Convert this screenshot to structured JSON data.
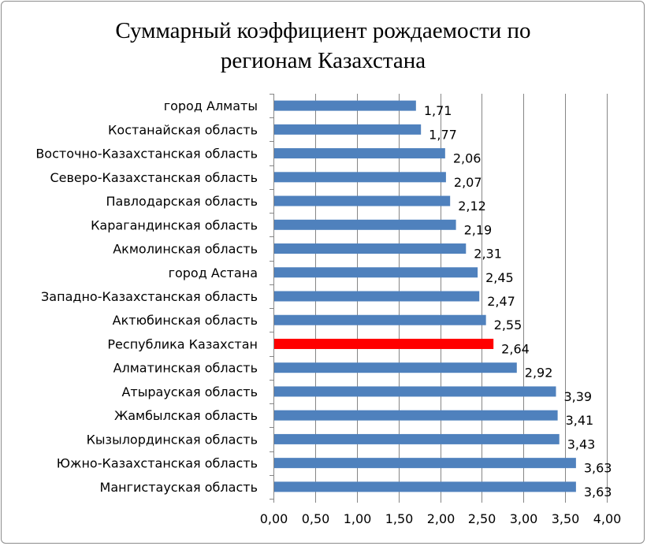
{
  "chart_data": {
    "type": "bar",
    "orientation": "horizontal",
    "title": "Суммарный коэффициент рождаемости по\nрегионам Казахстана",
    "xlabel": "",
    "ylabel": "",
    "xlim": [
      0,
      4
    ],
    "x_ticks": [
      "0,00",
      "0,50",
      "1,00",
      "1,50",
      "2,00",
      "2,50",
      "3,00",
      "3,50",
      "4,00"
    ],
    "grid": "vertical",
    "legend": "none",
    "colors": {
      "default_bar": "#4f81bd",
      "highlight_bar": "#ff0000",
      "grid": "#868686"
    },
    "categories": [
      "город Алматы",
      "Костанайская область",
      "Восточно-Казахстанская область",
      "Северо-Казахстанская область",
      "Павлодарская область",
      "Карагандинская область",
      "Акмолинская область",
      "город Астана",
      "Западно-Казахстанская область",
      "Актюбинская область",
      "Республика Казахстан",
      "Алматинская область",
      "Атырауская область",
      "Жамбылская область",
      "Кызылординская область",
      "Южно-Казахстанская область",
      "Мангистауская область"
    ],
    "values": [
      1.71,
      1.77,
      2.06,
      2.07,
      2.12,
      2.19,
      2.31,
      2.45,
      2.47,
      2.55,
      2.64,
      2.92,
      3.39,
      3.41,
      3.43,
      3.63,
      3.63
    ],
    "data_labels": [
      "1,71",
      "1,77",
      "2,06",
      "2,07",
      "2,12",
      "2,19",
      "2,31",
      "2,45",
      "2,47",
      "2,55",
      "2,64",
      "2,92",
      "3,39",
      "3,41",
      "3,43",
      "3,63",
      "3,63"
    ],
    "highlight": [
      "Республика Казахстан"
    ]
  }
}
